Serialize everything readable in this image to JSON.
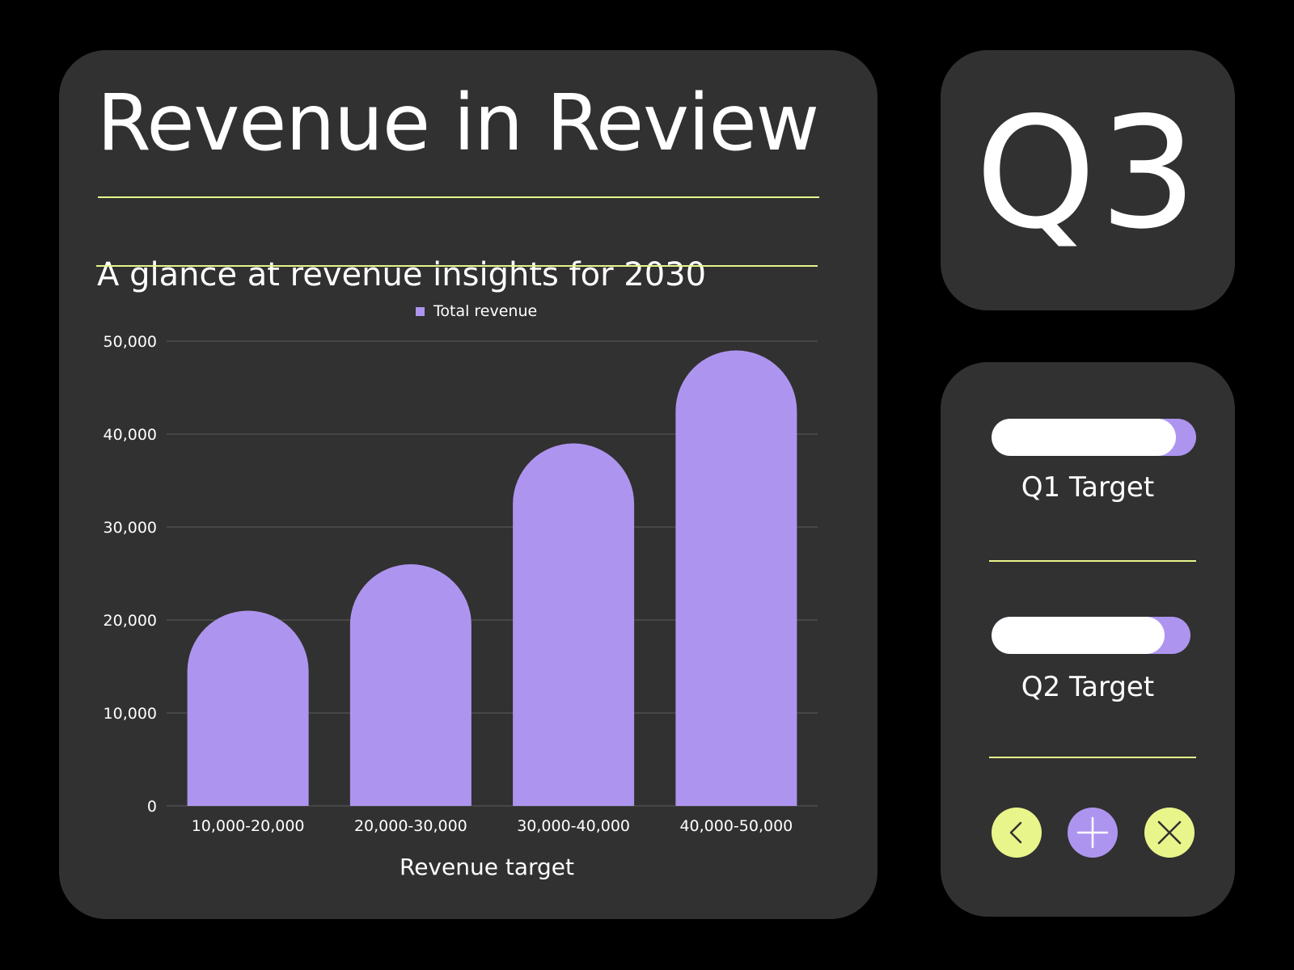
{
  "header": {
    "title": "Revenue in Review",
    "subtitle": "A glance at revenue insights for 2030"
  },
  "quarter_badge": "Q3",
  "targets": [
    {
      "label": "Q1 Target",
      "progress": 0.9
    },
    {
      "label": "Q2 Target",
      "progress": 0.87
    }
  ],
  "actions": [
    {
      "icon": "chevron-left-icon"
    },
    {
      "icon": "plus-icon"
    },
    {
      "icon": "close-icon"
    }
  ],
  "colors": {
    "background": "#000000",
    "card": "#313131",
    "bar": "#ad95ef",
    "accent": "#e8f58a",
    "text": "#ffffff"
  },
  "chart_data": {
    "type": "bar",
    "categories": [
      "10,000-20,000",
      "20,000-30,000",
      "30,000-40,000",
      "40,000-50,000"
    ],
    "series": [
      {
        "name": "Total revenue",
        "values": [
          21000,
          26000,
          39000,
          49000
        ]
      }
    ],
    "xlabel": "Revenue target",
    "ylabel": "",
    "ylim": [
      0,
      50000
    ],
    "yticks": [
      "0",
      "10,000",
      "20,000",
      "30,000",
      "40,000",
      "50,000"
    ],
    "grid": true,
    "legend": "top-center"
  }
}
